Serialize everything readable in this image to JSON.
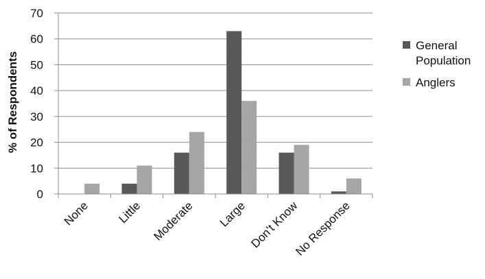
{
  "chart_data": {
    "type": "bar",
    "categories": [
      "None",
      "Little",
      "Moderate",
      "Large",
      "Don’t Know",
      "No Response"
    ],
    "series": [
      {
        "name": "General Population",
        "values": [
          0,
          4,
          16,
          63,
          16,
          1
        ],
        "color": "#595959"
      },
      {
        "name": "Anglers",
        "values": [
          4,
          11,
          24,
          36,
          19,
          6
        ],
        "color": "#a6a6a6"
      }
    ],
    "ylabel": "% of Respondents",
    "xlabel": "",
    "ylim": [
      0,
      70
    ],
    "yticks": [
      0,
      10,
      20,
      30,
      40,
      50,
      60,
      70
    ],
    "grid": true,
    "legend_position": "right"
  }
}
